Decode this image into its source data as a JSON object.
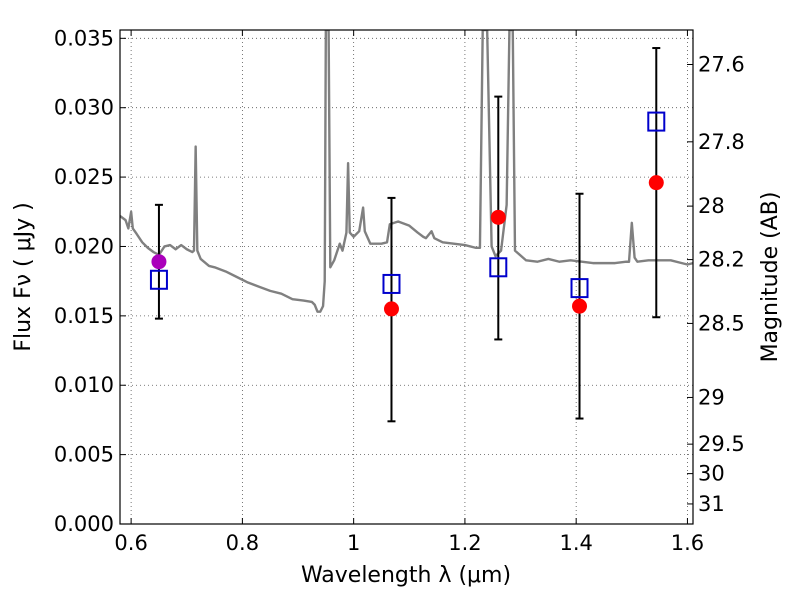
{
  "chart_data": {
    "type": "scatter",
    "xlabel": "Wavelength  λ (μm)",
    "ylabel": "Flux  Fν  ( μJy )",
    "y2label": "Magnitude (AB)",
    "xlim": [
      0.58,
      1.61
    ],
    "ylim": [
      0.0,
      0.0356
    ],
    "grid": true,
    "x_ticks": [
      {
        "value": 0.6,
        "label": "0.6"
      },
      {
        "value": 0.8,
        "label": "0.8"
      },
      {
        "value": 1.0,
        "label": "1"
      },
      {
        "value": 1.2,
        "label": "1.2"
      },
      {
        "value": 1.4,
        "label": "1.4"
      },
      {
        "value": 1.6,
        "label": "1.6"
      }
    ],
    "y_ticks": [
      {
        "value": 0.0,
        "label": "0.000"
      },
      {
        "value": 0.005,
        "label": "0.005"
      },
      {
        "value": 0.01,
        "label": "0.010"
      },
      {
        "value": 0.015,
        "label": "0.015"
      },
      {
        "value": 0.02,
        "label": "0.020"
      },
      {
        "value": 0.025,
        "label": "0.025"
      },
      {
        "value": 0.03,
        "label": "0.030"
      },
      {
        "value": 0.035,
        "label": "0.035"
      }
    ],
    "y2_ticks": [
      {
        "value": 27.6,
        "label": "27.6"
      },
      {
        "value": 27.8,
        "label": "27.8"
      },
      {
        "value": 28.0,
        "label": "28"
      },
      {
        "value": 28.2,
        "label": "28.2"
      },
      {
        "value": 28.5,
        "label": "28.5"
      },
      {
        "value": 29.0,
        "label": "29"
      },
      {
        "value": 29.5,
        "label": "29.5"
      },
      {
        "value": 30.0,
        "label": "30"
      },
      {
        "value": 31.0,
        "label": "31"
      }
    ],
    "series": [
      {
        "kind": "line",
        "color": "#808080",
        "points": [
          [
            0.58,
            0.0222
          ],
          [
            0.59,
            0.0219
          ],
          [
            0.595,
            0.0213
          ],
          [
            0.6,
            0.0225
          ],
          [
            0.603,
            0.0213
          ],
          [
            0.61,
            0.0209
          ],
          [
            0.62,
            0.0203
          ],
          [
            0.63,
            0.0199
          ],
          [
            0.64,
            0.0196
          ],
          [
            0.65,
            0.0194
          ],
          [
            0.66,
            0.02
          ],
          [
            0.67,
            0.0201
          ],
          [
            0.68,
            0.0198
          ],
          [
            0.69,
            0.0201
          ],
          [
            0.7,
            0.0198
          ],
          [
            0.71,
            0.0196
          ],
          [
            0.713,
            0.0197
          ],
          [
            0.716,
            0.0272
          ],
          [
            0.719,
            0.0197
          ],
          [
            0.725,
            0.0191
          ],
          [
            0.74,
            0.0186
          ],
          [
            0.75,
            0.0185
          ],
          [
            0.77,
            0.0182
          ],
          [
            0.79,
            0.0178
          ],
          [
            0.81,
            0.0174
          ],
          [
            0.83,
            0.0171
          ],
          [
            0.85,
            0.0168
          ],
          [
            0.87,
            0.0166
          ],
          [
            0.89,
            0.0162
          ],
          [
            0.91,
            0.0161
          ],
          [
            0.925,
            0.016
          ],
          [
            0.93,
            0.0158
          ],
          [
            0.935,
            0.0153
          ],
          [
            0.94,
            0.0153
          ],
          [
            0.945,
            0.0157
          ],
          [
            0.948,
            0.0175
          ],
          [
            0.95,
            0.0356
          ],
          [
            0.955,
            0.0356
          ],
          [
            0.958,
            0.0185
          ],
          [
            0.965,
            0.019
          ],
          [
            0.975,
            0.0202
          ],
          [
            0.98,
            0.0197
          ],
          [
            0.987,
            0.021
          ],
          [
            0.99,
            0.026
          ],
          [
            0.993,
            0.021
          ],
          [
            1.0,
            0.0207
          ],
          [
            1.01,
            0.0211
          ],
          [
            1.017,
            0.0228
          ],
          [
            1.02,
            0.0211
          ],
          [
            1.03,
            0.0202
          ],
          [
            1.04,
            0.0202
          ],
          [
            1.05,
            0.0202
          ],
          [
            1.06,
            0.0203
          ],
          [
            1.065,
            0.0216
          ],
          [
            1.08,
            0.0218
          ],
          [
            1.1,
            0.0215
          ],
          [
            1.115,
            0.021
          ],
          [
            1.125,
            0.0207
          ],
          [
            1.13,
            0.0206
          ],
          [
            1.14,
            0.0211
          ],
          [
            1.145,
            0.0206
          ],
          [
            1.16,
            0.0203
          ],
          [
            1.18,
            0.0202
          ],
          [
            1.2,
            0.0201
          ],
          [
            1.22,
            0.0199
          ],
          [
            1.227,
            0.0199
          ],
          [
            1.232,
            0.0356
          ],
          [
            1.24,
            0.0356
          ],
          [
            1.248,
            0.02
          ],
          [
            1.255,
            0.0193
          ],
          [
            1.265,
            0.0197
          ],
          [
            1.275,
            0.023
          ],
          [
            1.28,
            0.0356
          ],
          [
            1.286,
            0.0356
          ],
          [
            1.29,
            0.0197
          ],
          [
            1.31,
            0.019
          ],
          [
            1.33,
            0.0189
          ],
          [
            1.35,
            0.0191
          ],
          [
            1.37,
            0.0189
          ],
          [
            1.39,
            0.019
          ],
          [
            1.41,
            0.0189
          ],
          [
            1.43,
            0.0188
          ],
          [
            1.45,
            0.0188
          ],
          [
            1.47,
            0.0188
          ],
          [
            1.49,
            0.0189
          ],
          [
            1.495,
            0.0189
          ],
          [
            1.5,
            0.0217
          ],
          [
            1.505,
            0.0192
          ],
          [
            1.51,
            0.0189
          ],
          [
            1.53,
            0.019
          ],
          [
            1.55,
            0.019
          ],
          [
            1.57,
            0.019
          ],
          [
            1.59,
            0.0188
          ],
          [
            1.6,
            0.0187
          ],
          [
            1.61,
            0.0188
          ]
        ]
      },
      {
        "kind": "errorbar",
        "color": "#000000",
        "points": [
          {
            "x": 0.65,
            "y": 0.0189,
            "low": 0.0148,
            "high": 0.023
          },
          {
            "x": 1.068,
            "y": 0.0155,
            "low": 0.0074,
            "high": 0.0235
          },
          {
            "x": 1.26,
            "y": 0.0221,
            "low": 0.0133,
            "high": 0.0308
          },
          {
            "x": 1.406,
            "y": 0.0157,
            "low": 0.0076,
            "high": 0.0238
          },
          {
            "x": 1.544,
            "y": 0.0246,
            "low": 0.0149,
            "high": 0.0343
          }
        ]
      },
      {
        "kind": "scatter",
        "marker": "square-open",
        "color": "#0000cc",
        "points": [
          [
            0.65,
            0.0176
          ],
          [
            1.068,
            0.0173
          ],
          [
            1.26,
            0.0185
          ],
          [
            1.406,
            0.017
          ],
          [
            1.544,
            0.029
          ]
        ]
      },
      {
        "kind": "scatter",
        "marker": "circle",
        "colors": [
          "#aa00bb",
          "#ff0000",
          "#ff0000",
          "#ff0000",
          "#ff0000"
        ],
        "points": [
          [
            0.65,
            0.0189
          ],
          [
            1.068,
            0.0155
          ],
          [
            1.26,
            0.0221
          ],
          [
            1.406,
            0.0157
          ],
          [
            1.544,
            0.0246
          ]
        ]
      }
    ]
  }
}
